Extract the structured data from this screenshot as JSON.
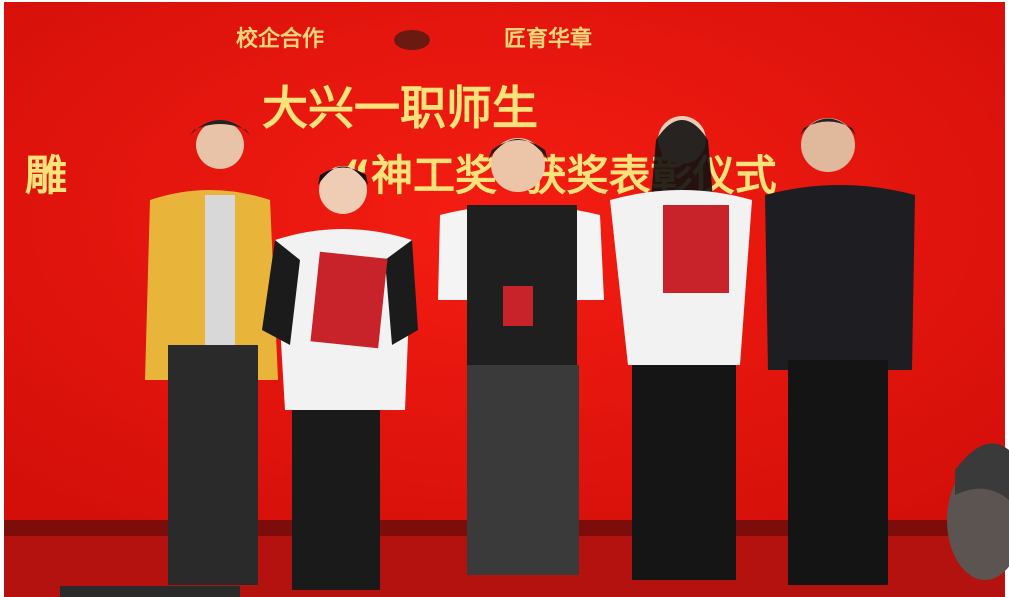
{
  "banner": {
    "top_left": "校企合作",
    "top_right": "匠育华章",
    "title_line1": "大兴一职师生",
    "title_line2_left": "雕",
    "title_line2_right": "“神工奖”获奖表彰仪式"
  }
}
